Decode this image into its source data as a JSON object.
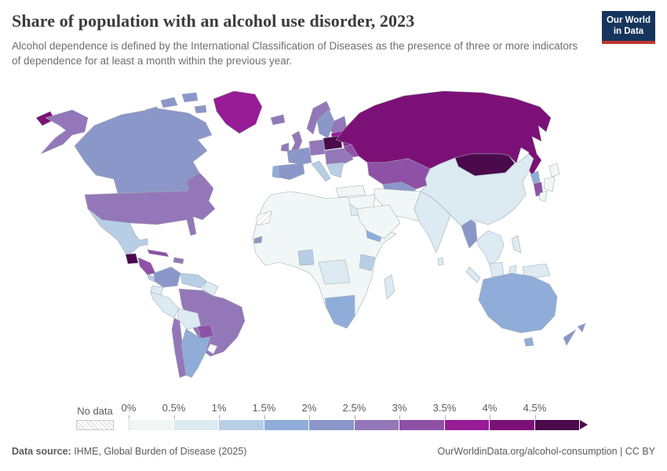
{
  "header": {
    "title": "Share of population with an alcohol use disorder, 2023",
    "subtitle": "Alcohol dependence is defined by the International Classification of Diseases as the presence of three or more indicators of dependence for at least a month within the previous year.",
    "logo_line1": "Our World",
    "logo_line2": "in Data",
    "logo_bg": "#16355c",
    "logo_accent": "#c0372e"
  },
  "legend": {
    "no_data_label": "No data",
    "buckets": [
      {
        "label": "0%",
        "range": "0–0.5%",
        "color": "#f1f7f6"
      },
      {
        "label": "0.5%",
        "range": "0.5–1%",
        "color": "#dceaf2"
      },
      {
        "label": "1%",
        "range": "1–1.5%",
        "color": "#b7cee5"
      },
      {
        "label": "1.5%",
        "range": "1.5–2%",
        "color": "#8fadd8"
      },
      {
        "label": "2%",
        "range": "2–2.5%",
        "color": "#8b97c9"
      },
      {
        "label": "2.5%",
        "range": "2.5–3%",
        "color": "#9477b8"
      },
      {
        "label": "3%",
        "range": "3–3.5%",
        "color": "#8f51a6"
      },
      {
        "label": "3.5%",
        "range": "3.5–4%",
        "color": "#971c96"
      },
      {
        "label": "4%",
        "range": "4–4.5%",
        "color": "#7b1176"
      },
      {
        "label": "4.5%",
        "range": "4.5%+",
        "color": "#4a0a4c"
      }
    ]
  },
  "footer": {
    "source_label": "Data source:",
    "source_text": " IHME, Global Burden of Disease (2025)",
    "link_text": "OurWorldinData.org/alcohol-consumption | CC BY"
  },
  "chart_data": {
    "type": "choropleth",
    "title": "Share of population with an alcohol use disorder",
    "year": 2023,
    "unit": "% of population",
    "legend_position": "bottom",
    "color_scale_note": "sequential white-blue-purple, hatched = no data, arrow = 4.5% and above",
    "regions": [
      {
        "id": "canada",
        "name": "Canada",
        "range": "2–2.5%",
        "color": "#8b97c9"
      },
      {
        "id": "greenland",
        "name": "Greenland",
        "range": "3.5–4%",
        "color": "#971c96"
      },
      {
        "id": "usa",
        "name": "United States",
        "range": "2.5–3%",
        "color": "#9477b8"
      },
      {
        "id": "mexico",
        "name": "Mexico",
        "range": "1–1.5%",
        "color": "#b7cee5"
      },
      {
        "id": "guatemala",
        "name": "Guatemala",
        "range": "4.5%+",
        "color": "#4a0a4c"
      },
      {
        "id": "honduras-nicaragua",
        "name": "Honduras / Nicaragua",
        "range": "3–3.5%",
        "color": "#8f51a6"
      },
      {
        "id": "costa-rica-panama",
        "name": "Costa Rica / Panama",
        "range": "1–1.5%",
        "color": "#b7cee5"
      },
      {
        "id": "cuba",
        "name": "Cuba",
        "range": "3–3.5%",
        "color": "#8f51a6"
      },
      {
        "id": "hispaniola",
        "name": "Hispaniola",
        "range": "2.5–3%",
        "color": "#9477b8"
      },
      {
        "id": "colombia",
        "name": "Colombia",
        "range": "2–2.5%",
        "color": "#8b97c9"
      },
      {
        "id": "venezuela",
        "name": "Venezuela",
        "range": "1–1.5%",
        "color": "#b7cee5"
      },
      {
        "id": "guyanas",
        "name": "Guyana / Suriname",
        "range": "0.5–1%",
        "color": "#dceaf2"
      },
      {
        "id": "brazil",
        "name": "Brazil",
        "range": "2.5–3%",
        "color": "#9477b8"
      },
      {
        "id": "ecuador",
        "name": "Ecuador",
        "range": "0.5–1%",
        "color": "#dceaf2"
      },
      {
        "id": "peru",
        "name": "Peru",
        "range": "0.5–1%",
        "color": "#dceaf2"
      },
      {
        "id": "bolivia",
        "name": "Bolivia",
        "range": "0.5–1%",
        "color": "#dceaf2"
      },
      {
        "id": "paraguay",
        "name": "Paraguay",
        "range": "3–3.5%",
        "color": "#8f51a6"
      },
      {
        "id": "chile",
        "name": "Chile",
        "range": "2.5–3%",
        "color": "#9477b8"
      },
      {
        "id": "argentina",
        "name": "Argentina",
        "range": "1.5–2%",
        "color": "#8fadd8"
      },
      {
        "id": "uruguay",
        "name": "Uruguay",
        "range": "0–0.5%",
        "color": "#f1f7f6"
      },
      {
        "id": "iceland",
        "name": "Iceland",
        "range": "2.5–3%",
        "color": "#9477b8"
      },
      {
        "id": "ireland",
        "name": "Ireland",
        "range": "2.5–3%",
        "color": "#9477b8"
      },
      {
        "id": "uk",
        "name": "United Kingdom",
        "range": "2.5–3%",
        "color": "#9477b8"
      },
      {
        "id": "portugal",
        "name": "Portugal",
        "range": "1.5–2%",
        "color": "#8fadd8"
      },
      {
        "id": "spain",
        "name": "Spain",
        "range": "2–2.5%",
        "color": "#8b97c9"
      },
      {
        "id": "france",
        "name": "France",
        "range": "2–2.5%",
        "color": "#8b97c9"
      },
      {
        "id": "germany",
        "name": "Germany",
        "range": "2.5–3%",
        "color": "#9477b8"
      },
      {
        "id": "italy",
        "name": "Italy",
        "range": "1–1.5%",
        "color": "#b7cee5"
      },
      {
        "id": "norway",
        "name": "Norway",
        "range": "2.5–3%",
        "color": "#9477b8"
      },
      {
        "id": "sweden",
        "name": "Sweden",
        "range": "2–2.5%",
        "color": "#8b97c9"
      },
      {
        "id": "finland",
        "name": "Finland",
        "range": "2.5–3%",
        "color": "#9477b8"
      },
      {
        "id": "baltics",
        "name": "Baltic states",
        "range": "3.5–4%",
        "color": "#971c96"
      },
      {
        "id": "poland",
        "name": "Poland",
        "range": "4.5%+",
        "color": "#4a0a4c"
      },
      {
        "id": "belarus",
        "name": "Belarus",
        "range": "3.5–4%",
        "color": "#971c96"
      },
      {
        "id": "ukraine",
        "name": "Ukraine",
        "range": "3–3.5%",
        "color": "#8f51a6"
      },
      {
        "id": "central-europe",
        "name": "Central Europe",
        "range": "2.5–3%",
        "color": "#9477b8"
      },
      {
        "id": "balkans-greece",
        "name": "Balkans / Greece",
        "range": "1–1.5%",
        "color": "#b7cee5"
      },
      {
        "id": "turkey",
        "name": "Turkey",
        "range": "0–0.5%",
        "color": "#f1f7f6"
      },
      {
        "id": "russia",
        "name": "Russia",
        "range": "4–4.5%",
        "color": "#7b1176"
      },
      {
        "id": "kazakhstan",
        "name": "Kazakhstan",
        "range": "3–3.5%",
        "color": "#8f51a6"
      },
      {
        "id": "central-asia",
        "name": "Central Asia",
        "range": "2–2.5%",
        "color": "#8b97c9"
      },
      {
        "id": "mongolia",
        "name": "Mongolia",
        "range": "4.5%+",
        "color": "#4a0a4c"
      },
      {
        "id": "china",
        "name": "China",
        "range": "0.5–1%",
        "color": "#dceaf2"
      },
      {
        "id": "north-korea",
        "name": "North Korea",
        "range": "1.5–2%",
        "color": "#8fadd8"
      },
      {
        "id": "south-korea",
        "name": "South Korea",
        "range": "3–3.5%",
        "color": "#8f51a6"
      },
      {
        "id": "japan",
        "name": "Japan",
        "range": "0–0.5%",
        "color": "#f1f7f6"
      },
      {
        "id": "india",
        "name": "India",
        "range": "0.5–1%",
        "color": "#dceaf2"
      },
      {
        "id": "sri-lanka",
        "name": "Sri Lanka",
        "range": "0.5–1%",
        "color": "#dceaf2"
      },
      {
        "id": "pakistan-afghanistan",
        "name": "Pakistan / Afghanistan / Iran",
        "range": "0–0.5%",
        "color": "#f1f7f6"
      },
      {
        "id": "arabia",
        "name": "Arabian Peninsula",
        "range": "0–0.5%",
        "color": "#f1f7f6"
      },
      {
        "id": "middle-east",
        "name": "Middle East",
        "range": "0–0.5%",
        "color": "#f1f7f6"
      },
      {
        "id": "myanmar",
        "name": "Myanmar",
        "range": "2–2.5%",
        "color": "#8b97c9"
      },
      {
        "id": "se-asia",
        "name": "Thailand / Indochina",
        "range": "0.5–1%",
        "color": "#dceaf2"
      },
      {
        "id": "indonesia",
        "name": "Indonesia",
        "range": "0.5–1%",
        "color": "#dceaf2"
      },
      {
        "id": "png",
        "name": "Papua New Guinea",
        "range": "0.5–1%",
        "color": "#dceaf2"
      },
      {
        "id": "philippines",
        "name": "Philippines",
        "range": "0.5–1%",
        "color": "#dceaf2"
      },
      {
        "id": "north-africa",
        "name": "North & West Africa",
        "range": "0–0.5%",
        "color": "#f1f7f6"
      },
      {
        "id": "egypt",
        "name": "Egypt",
        "range": "0.5–1%",
        "color": "#dceaf2"
      },
      {
        "id": "ethiopia",
        "name": "Ethiopia",
        "range": "1.5–2%",
        "color": "#8fadd8"
      },
      {
        "id": "nigeria",
        "name": "Nigeria",
        "range": "1–1.5%",
        "color": "#b7cee5"
      },
      {
        "id": "drc-central",
        "name": "Central Africa (DRC)",
        "range": "0.5–1%",
        "color": "#dceaf2"
      },
      {
        "id": "tanzania",
        "name": "Tanzania",
        "range": "1–1.5%",
        "color": "#b7cee5"
      },
      {
        "id": "southern-africa",
        "name": "Southern Africa",
        "range": "1.5–2%",
        "color": "#8fadd8"
      },
      {
        "id": "madagascar",
        "name": "Madagascar",
        "range": "0.5–1%",
        "color": "#dceaf2"
      },
      {
        "id": "senegal",
        "name": "Senegal",
        "range": "2–2.5%",
        "color": "#8b97c9"
      },
      {
        "id": "western-sahara",
        "name": "Western Sahara",
        "range": "No data",
        "color": "no-data"
      },
      {
        "id": "australia",
        "name": "Australia",
        "range": "1.5–2%",
        "color": "#8fadd8"
      },
      {
        "id": "new-zealand",
        "name": "New Zealand",
        "range": "2–2.5%",
        "color": "#8b97c9"
      }
    ]
  }
}
